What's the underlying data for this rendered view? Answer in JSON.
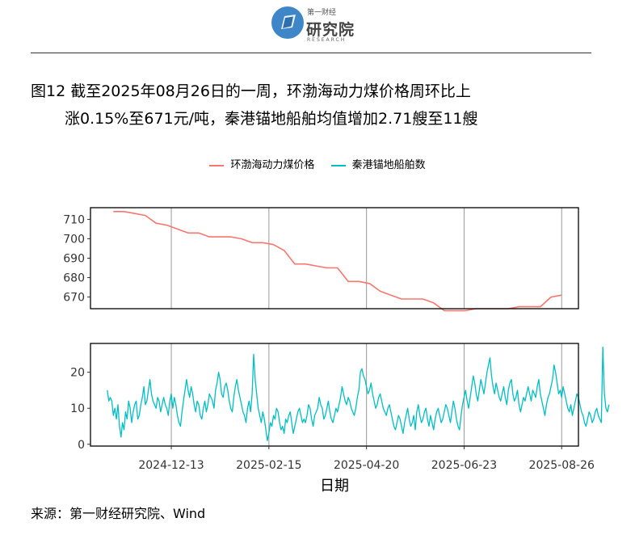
{
  "header": {
    "logo_top": "第一财经",
    "logo_cn": "研究院",
    "logo_en": "RESEARCH"
  },
  "title": {
    "line1": "图12  截至2025年08月26日的一周，环渤海动力煤价格周环比上",
    "line2": "涨0.15%至671元/吨，秦港锚地船舶均值增加2.71艘至11艘"
  },
  "source": "来源：第一财经研究院、Wind",
  "colors": {
    "price": "#f8766d",
    "ships": "#00bfc4",
    "grid": "#999999"
  },
  "chart_data": {
    "type": "line",
    "xlabel": "日期",
    "x_ticks": [
      "2024-12-13",
      "2025-02-15",
      "2025-04-20",
      "2025-06-23",
      "2025-08-26"
    ],
    "x_range": [
      "2024-10-21",
      "2025-09-06"
    ],
    "legend": [
      "环渤海动力煤价格",
      "秦港锚地船舶数"
    ],
    "panels": [
      {
        "series": "环渤海动力煤价格",
        "ylim": [
          664,
          716
        ],
        "y_ticks": [
          670,
          680,
          690,
          700,
          710
        ],
        "points": [
          [
            "2024-11-05",
            714
          ],
          [
            "2024-11-12",
            714
          ],
          [
            "2024-11-19",
            713
          ],
          [
            "2024-11-26",
            712
          ],
          [
            "2024-12-03",
            708
          ],
          [
            "2024-12-10",
            707
          ],
          [
            "2024-12-17",
            705
          ],
          [
            "2024-12-24",
            703
          ],
          [
            "2024-12-31",
            703
          ],
          [
            "2025-01-07",
            701
          ],
          [
            "2025-01-14",
            701
          ],
          [
            "2025-01-21",
            701
          ],
          [
            "2025-01-28",
            700
          ],
          [
            "2025-02-04",
            698
          ],
          [
            "2025-02-11",
            698
          ],
          [
            "2025-02-18",
            697
          ],
          [
            "2025-02-25",
            694
          ],
          [
            "2025-03-04",
            687
          ],
          [
            "2025-03-11",
            687
          ],
          [
            "2025-03-18",
            686
          ],
          [
            "2025-03-25",
            685
          ],
          [
            "2025-04-01",
            685
          ],
          [
            "2025-04-08",
            678
          ],
          [
            "2025-04-15",
            678
          ],
          [
            "2025-04-22",
            677
          ],
          [
            "2025-04-29",
            673
          ],
          [
            "2025-05-06",
            671
          ],
          [
            "2025-05-13",
            669
          ],
          [
            "2025-05-20",
            669
          ],
          [
            "2025-05-27",
            669
          ],
          [
            "2025-06-03",
            667
          ],
          [
            "2025-06-10",
            663
          ],
          [
            "2025-06-17",
            663
          ],
          [
            "2025-06-24",
            663
          ],
          [
            "2025-07-01",
            664
          ],
          [
            "2025-07-08",
            664
          ],
          [
            "2025-07-15",
            664
          ],
          [
            "2025-07-22",
            664
          ],
          [
            "2025-07-29",
            665
          ],
          [
            "2025-08-05",
            665
          ],
          [
            "2025-08-12",
            665
          ],
          [
            "2025-08-19",
            670
          ],
          [
            "2025-08-26",
            671
          ]
        ]
      },
      {
        "series": "秦港锚地船舶数",
        "ylim": [
          -0.5,
          28
        ],
        "y_ticks": [
          0,
          10,
          20
        ],
        "x_start": "2024-11-01",
        "x_step_days": 1,
        "values": [
          15,
          12,
          13,
          12,
          8,
          10,
          7,
          11,
          5,
          2,
          6,
          4,
          9,
          7,
          12,
          10,
          6,
          9,
          11,
          12,
          7,
          8,
          11,
          13,
          16,
          11,
          12,
          15,
          18,
          14,
          12,
          11,
          10,
          13,
          12,
          9,
          11,
          13,
          11,
          10,
          8,
          12,
          14,
          10,
          13,
          11,
          8,
          6,
          5,
          9,
          12,
          15,
          18,
          15,
          13,
          16,
          14,
          11,
          9,
          12,
          11,
          8,
          7,
          10,
          12,
          9,
          11,
          14,
          13,
          12,
          10,
          15,
          17,
          20,
          18,
          14,
          13,
          16,
          17,
          15,
          12,
          10,
          9,
          13,
          16,
          18,
          15,
          13,
          11,
          9,
          8,
          6,
          10,
          12,
          9,
          14,
          25,
          18,
          14,
          10,
          8,
          6,
          9,
          7,
          4,
          1,
          3,
          6,
          5,
          8,
          7,
          10,
          9,
          6,
          4,
          5,
          3,
          7,
          6,
          8,
          9,
          6,
          3,
          5,
          7,
          9,
          10,
          8,
          6,
          7,
          6,
          8,
          11,
          10,
          7,
          5,
          8,
          9,
          10,
          13,
          11,
          10,
          7,
          8,
          10,
          12,
          9,
          7,
          6,
          8,
          10,
          9,
          11,
          13,
          16,
          14,
          12,
          11,
          13,
          12,
          10,
          9,
          8,
          10,
          13,
          15,
          20,
          21,
          19,
          18,
          16,
          14,
          15,
          17,
          14,
          12,
          10,
          11,
          13,
          14,
          12,
          10,
          9,
          8,
          10,
          11,
          9,
          7,
          5,
          4,
          6,
          8,
          7,
          5,
          3,
          6,
          8,
          10,
          7,
          5,
          6,
          8,
          4,
          9,
          11,
          8,
          6,
          7,
          9,
          10,
          7,
          5,
          8,
          6,
          4,
          7,
          9,
          10,
          8,
          6,
          7,
          9,
          11,
          10,
          8,
          6,
          9,
          12,
          10,
          7,
          5,
          4,
          8,
          11,
          13,
          15,
          12,
          10,
          13,
          16,
          19,
          17,
          14,
          12,
          15,
          18,
          16,
          14,
          17,
          20,
          22,
          24,
          19,
          16,
          14,
          17,
          15,
          13,
          12,
          14,
          16,
          13,
          11,
          15,
          17,
          18,
          14,
          12,
          13,
          15,
          11,
          9,
          11,
          13,
          12,
          14,
          16,
          14,
          12,
          15,
          14,
          13,
          16,
          18,
          14,
          12,
          10,
          8,
          11,
          13,
          14,
          16,
          18,
          22,
          20,
          17,
          14,
          15,
          13,
          16,
          14,
          12,
          10,
          9,
          11,
          8,
          10,
          12,
          14,
          13,
          11,
          9,
          8,
          6,
          5,
          7,
          9,
          8,
          6,
          7,
          9,
          10,
          8,
          7,
          6,
          27,
          14,
          10,
          9,
          11
        ],
        "annotation_count": 1
      }
    ]
  }
}
